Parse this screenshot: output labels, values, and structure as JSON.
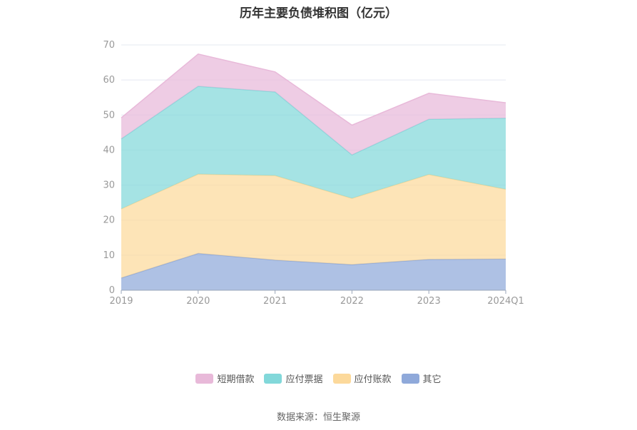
{
  "source": "数据来源：恒生聚源",
  "chart_data": {
    "type": "area",
    "stacked": true,
    "title": "历年主要负债堆积图（亿元）",
    "categories": [
      "2019",
      "2020",
      "2021",
      "2022",
      "2023",
      "2024Q1"
    ],
    "ylim": [
      0,
      70
    ],
    "yticks": [
      0,
      10,
      20,
      30,
      40,
      50,
      60,
      70
    ],
    "grid": true,
    "legend_position": "bottom",
    "series": [
      {
        "name": "其它",
        "color": "#8fa9da",
        "values": [
          3.5,
          10.5,
          8.6,
          7.3,
          8.8,
          8.9
        ]
      },
      {
        "name": "应付账款",
        "color": "#fcd99b",
        "values": [
          19.7,
          22.6,
          24.1,
          18.9,
          24.2,
          19.9
        ]
      },
      {
        "name": "应付票据",
        "color": "#82d8da",
        "values": [
          20.0,
          25.1,
          23.9,
          12.4,
          15.8,
          20.3
        ]
      },
      {
        "name": "短期借款",
        "color": "#e8b9d9",
        "values": [
          6.0,
          9.2,
          5.7,
          8.5,
          7.4,
          4.4
        ]
      }
    ]
  }
}
